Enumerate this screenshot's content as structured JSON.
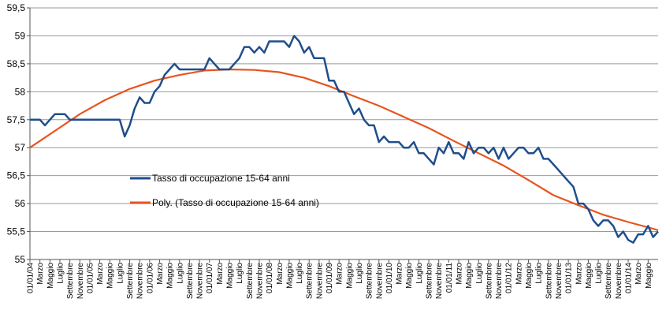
{
  "chart_data": {
    "type": "line",
    "title": "",
    "xlabel": "",
    "ylabel": "",
    "ylim": [
      55,
      59.5
    ],
    "ytick_step": 0.5,
    "y_tick_labels": [
      "55",
      "55,5",
      "56",
      "56,5",
      "57",
      "57,5",
      "58",
      "58,5",
      "59",
      "59,5"
    ],
    "x_tick_labels": [
      "01/01/04",
      "Marzo",
      "Maggio",
      "Luglio",
      "Settembre",
      "Novembre",
      "01/01/05",
      "Marzo",
      "Maggio",
      "Luglio",
      "Settembre",
      "Novembre",
      "01/01/06",
      "Marzo",
      "Maggio",
      "Luglio",
      "Settembre",
      "Novembre",
      "01/01/07",
      "Marzo",
      "Maggio",
      "Luglio",
      "Settembre",
      "Novembre",
      "01/01/08",
      "Marzo",
      "Maggio",
      "Luglio",
      "Settembre",
      "Novembre",
      "01/01/09",
      "Marzo",
      "Maggio",
      "Luglio",
      "Settembre",
      "Novembre",
      "01/01/10",
      "Marzo",
      "Maggio",
      "Luglio",
      "Settembre",
      "Novembre",
      "01/01/11",
      "Marzo",
      "Maggio",
      "Luglio",
      "Settembre",
      "Novembre",
      "01/01/12",
      "Marzo",
      "Maggio",
      "Luglio",
      "Settembre",
      "Novembre",
      "01/01/13",
      "Marzo",
      "Maggio",
      "Luglio",
      "Settembre",
      "Novembre",
      "01/01/14",
      "Marzo",
      "Maggio"
    ],
    "series": [
      {
        "name": "Tasso di occupazione 15-64 anni",
        "color": "#1f4e8c",
        "values": [
          57.5,
          57.5,
          57.5,
          57.4,
          57.5,
          57.6,
          57.6,
          57.6,
          57.5,
          57.5,
          57.5,
          57.5,
          57.5,
          57.5,
          57.5,
          57.5,
          57.5,
          57.5,
          57.5,
          57.2,
          57.4,
          57.7,
          57.9,
          57.8,
          57.8,
          58.0,
          58.1,
          58.3,
          58.4,
          58.5,
          58.4,
          58.4,
          58.4,
          58.4,
          58.4,
          58.4,
          58.6,
          58.5,
          58.4,
          58.4,
          58.4,
          58.5,
          58.6,
          58.8,
          58.8,
          58.7,
          58.8,
          58.7,
          58.9,
          58.9,
          58.9,
          58.9,
          58.8,
          59.0,
          58.9,
          58.7,
          58.8,
          58.6,
          58.6,
          58.6,
          58.2,
          58.2,
          58.0,
          58.0,
          57.8,
          57.6,
          57.7,
          57.5,
          57.4,
          57.4,
          57.1,
          57.2,
          57.1,
          57.1,
          57.1,
          57.0,
          57.0,
          57.1,
          56.9,
          56.9,
          56.8,
          56.7,
          57.0,
          56.9,
          57.1,
          56.9,
          56.9,
          56.8,
          57.1,
          56.9,
          57.0,
          57.0,
          56.9,
          57.0,
          56.8,
          57.0,
          56.8,
          56.9,
          57.0,
          57.0,
          56.9,
          56.9,
          57.0,
          56.8,
          56.8,
          56.7,
          56.6,
          56.5,
          56.4,
          56.3,
          56.0,
          56.0,
          55.9,
          55.7,
          55.6,
          55.7,
          55.7,
          55.6,
          55.4,
          55.5,
          55.35,
          55.3,
          55.45,
          55.45,
          55.6,
          55.4,
          55.5
        ]
      },
      {
        "name": "Poly. (Tasso di occupazione 15-64 anni)",
        "color": "#e8541e",
        "type": "poly-trend",
        "points": [
          [
            0,
            57.0
          ],
          [
            5,
            57.3
          ],
          [
            10,
            57.6
          ],
          [
            15,
            57.85
          ],
          [
            20,
            58.05
          ],
          [
            25,
            58.2
          ],
          [
            30,
            58.3
          ],
          [
            35,
            58.38
          ],
          [
            40,
            58.4
          ],
          [
            45,
            58.39
          ],
          [
            50,
            58.35
          ],
          [
            55,
            58.25
          ],
          [
            60,
            58.1
          ],
          [
            65,
            57.92
          ],
          [
            70,
            57.75
          ],
          [
            75,
            57.55
          ],
          [
            80,
            57.35
          ],
          [
            85,
            57.12
          ],
          [
            90,
            56.9
          ],
          [
            95,
            56.68
          ],
          [
            100,
            56.42
          ],
          [
            105,
            56.15
          ],
          [
            110,
            55.97
          ],
          [
            115,
            55.8
          ],
          [
            120,
            55.67
          ],
          [
            125,
            55.55
          ],
          [
            126,
            55.52
          ]
        ]
      }
    ],
    "legend": {
      "placement": "center-left",
      "position": "center-left",
      "items": [
        "Tasso di occupazione 15-64 anni",
        "Poly. (Tasso di occupazione 15-64 anni)"
      ]
    },
    "grid": true,
    "gridline_color": "#9a9a9a"
  }
}
